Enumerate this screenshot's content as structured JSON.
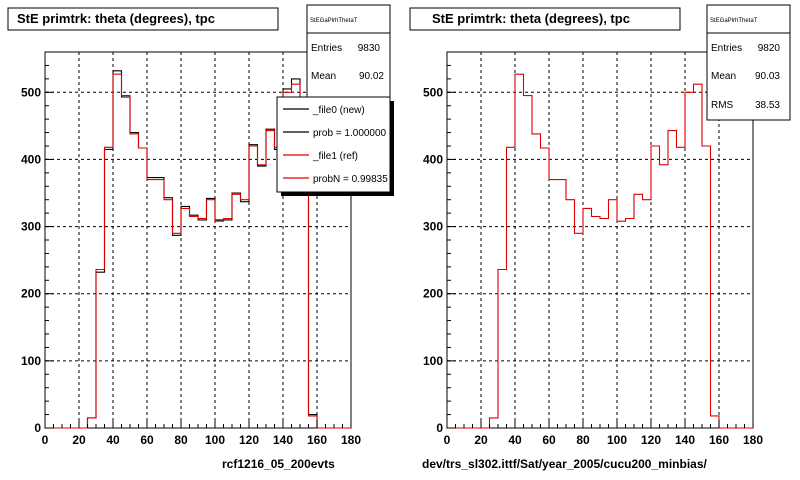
{
  "chart_data": [
    {
      "type": "bar",
      "title": "StE primtrk: theta (degrees), tpc",
      "xlabel": "rcf1216_05_200evts",
      "xlim": [
        0,
        180
      ],
      "ylim": [
        0,
        560
      ],
      "x_ticks": [
        "0",
        "20",
        "40",
        "60",
        "80",
        "100",
        "120",
        "140",
        "160",
        "180"
      ],
      "y_ticks": [
        "0",
        "100",
        "200",
        "300",
        "400",
        "500"
      ],
      "bin_width": 5,
      "bin_edges_start": 0,
      "grid": true,
      "series": [
        {
          "name": "_file0 (new)",
          "color": "#000000",
          "values": [
            0,
            0,
            0,
            0,
            0,
            15,
            232,
            415,
            532,
            493,
            440,
            417,
            373,
            373,
            343,
            287,
            330,
            317,
            310,
            342,
            310,
            310,
            350,
            337,
            422,
            390,
            445,
            415,
            505,
            520,
            420,
            20,
            0,
            0,
            0,
            0
          ]
        },
        {
          "name": "_file1 (ref)",
          "color": "#dd0000",
          "values": [
            0,
            0,
            0,
            0,
            0,
            15,
            236,
            418,
            527,
            495,
            438,
            417,
            370,
            370,
            340,
            290,
            327,
            315,
            312,
            340,
            308,
            312,
            348,
            340,
            420,
            392,
            443,
            418,
            500,
            512,
            420,
            18,
            0,
            0,
            0,
            0
          ]
        }
      ],
      "stats": {
        "name": "StEGaPlrhThetaT",
        "entries_label": "Entries",
        "entries": "9830",
        "mean_label": "Mean",
        "mean": "90.02"
      },
      "legend": [
        {
          "label": "_file0 (new)",
          "color": "#000000"
        },
        {
          "label": "prob = 1.000000",
          "color": "#000000"
        },
        {
          "label": "_file1 (ref)",
          "color": "#dd0000"
        },
        {
          "label": "probN = 0.99835",
          "color": "#dd0000"
        }
      ]
    },
    {
      "type": "bar",
      "title": "StE primtrk: theta (degrees), tpc",
      "xlabel": "dev/trs_sl302.ittf/Sat/year_2005/cucu200_minbias/",
      "xlim": [
        0,
        180
      ],
      "ylim": [
        0,
        560
      ],
      "x_ticks": [
        "0",
        "20",
        "40",
        "60",
        "80",
        "100",
        "120",
        "140",
        "160",
        "180"
      ],
      "y_ticks": [
        "0",
        "100",
        "200",
        "300",
        "400",
        "500"
      ],
      "bin_width": 5,
      "bin_edges_start": 0,
      "grid": true,
      "series": [
        {
          "name": "",
          "color": "#dd0000",
          "values": [
            0,
            0,
            0,
            0,
            0,
            15,
            236,
            418,
            527,
            495,
            438,
            417,
            370,
            370,
            340,
            290,
            327,
            315,
            312,
            340,
            308,
            312,
            348,
            340,
            420,
            392,
            443,
            418,
            500,
            512,
            420,
            18,
            0,
            0,
            0,
            0
          ]
        }
      ],
      "stats": {
        "name": "StEGaPlrhThetaT",
        "entries_label": "Entries",
        "entries": "9820",
        "mean_label": "Mean",
        "mean": "90.03",
        "rms_label": "RMS",
        "rms": "38.53"
      }
    }
  ]
}
